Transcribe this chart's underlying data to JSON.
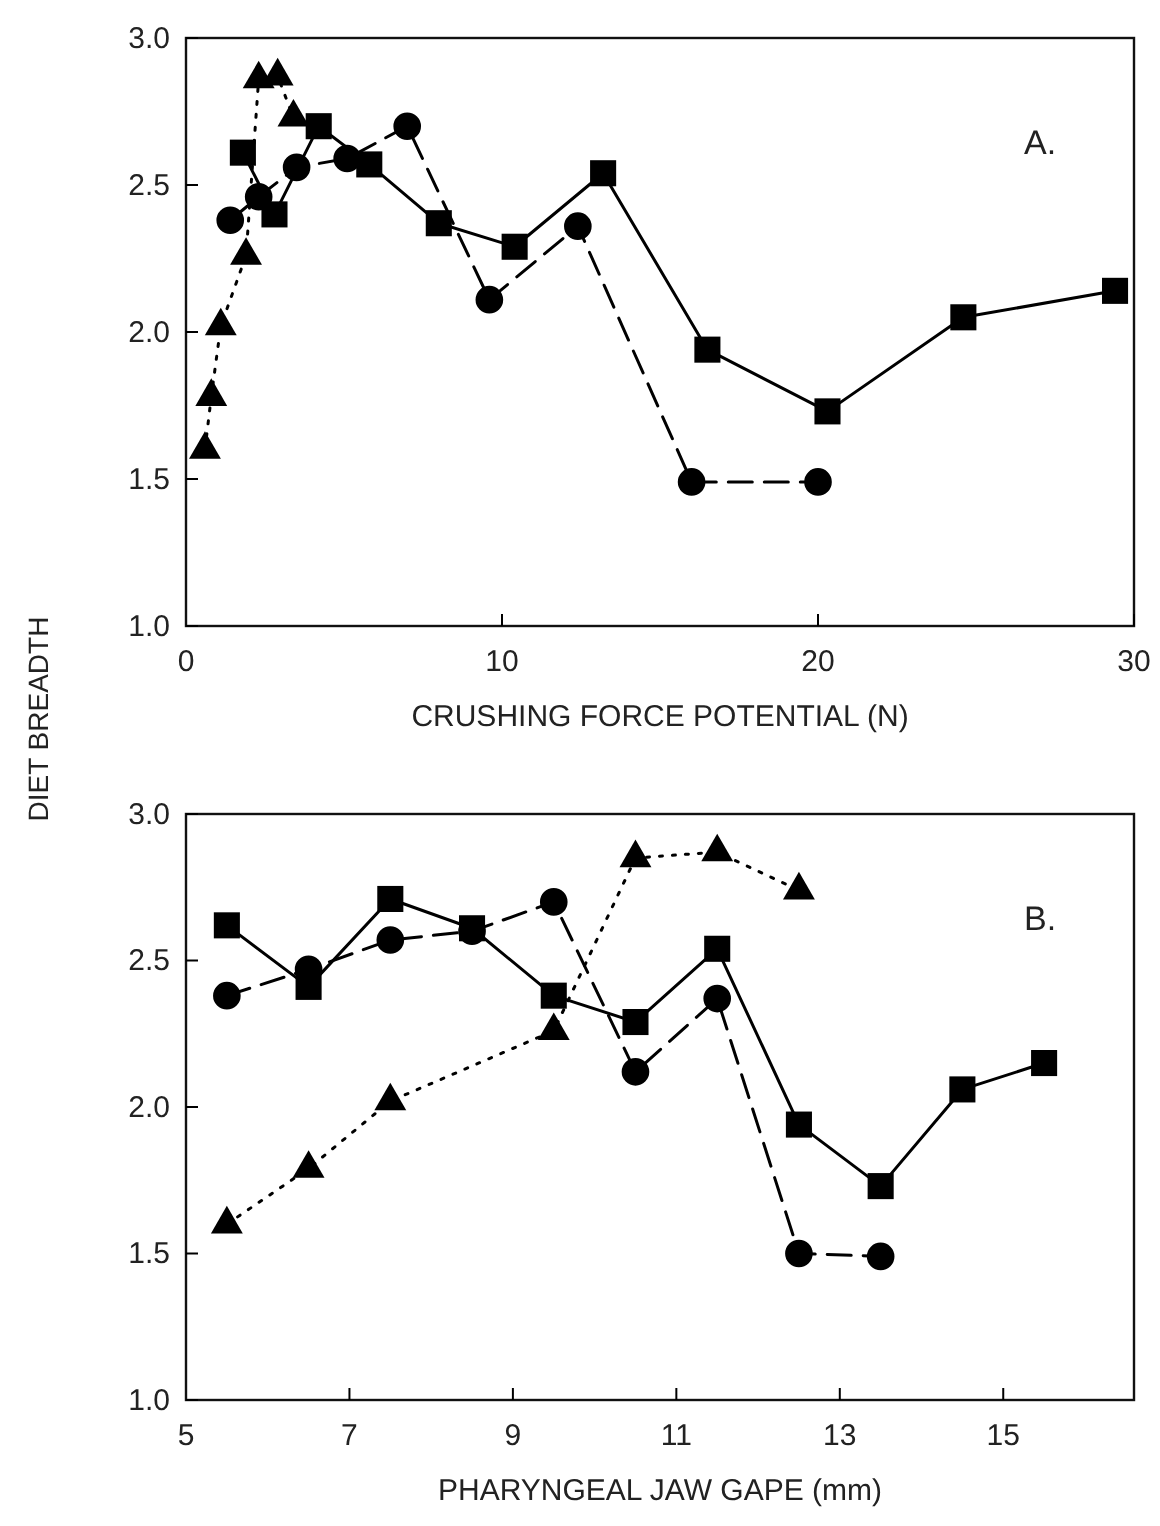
{
  "chart_data": [
    {
      "type": "line",
      "xlabel": "CRUSHING FORCE POTENTIAL (N)",
      "ylabel": "DIET BREADTH",
      "annotations": [
        "A."
      ],
      "xlim": [
        0,
        30
      ],
      "xticks": [
        0,
        10,
        20,
        30
      ],
      "ylim": [
        1,
        3
      ],
      "yticks": [
        {
          "value": 1,
          "label": "1.0"
        },
        {
          "value": 1.5,
          "label": "1.5"
        },
        {
          "value": 2,
          "label": "2.0"
        },
        {
          "value": 2.5,
          "label": "2.5"
        },
        {
          "value": 3,
          "label": "3.0"
        }
      ],
      "grid": false,
      "series": [
        {
          "color": "#000000",
          "marker": "square",
          "line_style": "solid",
          "x": [
            1.8,
            2.8,
            4.2,
            5.8,
            8.0,
            10.4,
            13.2,
            16.5,
            20.3,
            24.6,
            29.4
          ],
          "values": [
            2.61,
            2.4,
            2.7,
            2.57,
            2.37,
            2.29,
            2.54,
            1.94,
            1.73,
            2.05,
            2.14
          ]
        },
        {
          "color": "#000000",
          "marker": "circle",
          "line_style": "dashed",
          "x": [
            1.4,
            2.3,
            3.5,
            5.1,
            7.0,
            9.6,
            12.4,
            16.0,
            20.0
          ],
          "values": [
            2.38,
            2.46,
            2.56,
            2.59,
            2.7,
            2.11,
            2.36,
            1.49,
            1.49
          ]
        },
        {
          "color": "#000000",
          "marker": "triangle",
          "line_style": "dotted",
          "x": [
            0.6,
            0.8,
            1.1,
            1.9,
            2.3,
            2.9,
            3.4
          ],
          "values": [
            1.6,
            1.78,
            2.02,
            2.26,
            2.86,
            2.87,
            2.73
          ]
        }
      ]
    },
    {
      "type": "line",
      "xlabel": "PHARYNGEAL JAW GAPE (mm)",
      "annotations": [
        "B."
      ],
      "xlim": [
        5,
        16.6
      ],
      "xticks": [
        5,
        7,
        9,
        11,
        13,
        15
      ],
      "ylim": [
        1,
        3
      ],
      "yticks": [
        {
          "value": 1,
          "label": "1.0"
        },
        {
          "value": 1.5,
          "label": "1.5"
        },
        {
          "value": 2,
          "label": "2.0"
        },
        {
          "value": 2.5,
          "label": "2.5"
        },
        {
          "value": 3,
          "label": "3.0"
        }
      ],
      "grid": false,
      "series": [
        {
          "color": "#000000",
          "marker": "square",
          "line_style": "solid",
          "x": [
            5.5,
            6.5,
            7.5,
            8.5,
            9.5,
            10.5,
            11.5,
            12.5,
            13.5,
            14.5,
            15.5
          ],
          "values": [
            2.62,
            2.41,
            2.71,
            2.61,
            2.38,
            2.29,
            2.54,
            1.94,
            1.73,
            2.06,
            2.15
          ]
        },
        {
          "color": "#000000",
          "marker": "circle",
          "line_style": "dashed",
          "x": [
            5.5,
            6.5,
            7.5,
            8.5,
            9.5,
            10.5,
            11.5,
            12.5,
            13.5
          ],
          "values": [
            2.38,
            2.47,
            2.57,
            2.6,
            2.7,
            2.12,
            2.37,
            1.5,
            1.49
          ]
        },
        {
          "color": "#000000",
          "marker": "triangle",
          "line_style": "dotted",
          "x": [
            5.5,
            6.5,
            7.5,
            9.5,
            10.5,
            11.5,
            12.5
          ],
          "values": [
            1.6,
            1.79,
            2.02,
            2.26,
            2.85,
            2.87,
            2.74
          ]
        }
      ]
    }
  ]
}
